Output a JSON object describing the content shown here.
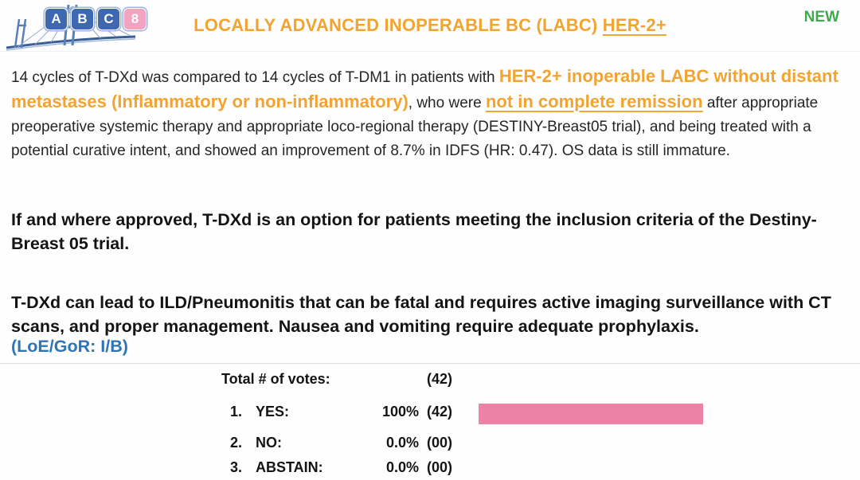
{
  "header": {
    "logo": {
      "letters": [
        "A",
        "B",
        "C"
      ],
      "number": "8"
    },
    "title_main": "LOCALLY ADVANCED INOPERABLE BC (LABC) ",
    "title_underlined": "HER-2+",
    "badge": "NEW"
  },
  "intro": {
    "seg1": "14 cycles of T-DXd was compared to 14 cycles of T-DM1 in patients with ",
    "seg2_highlight": "HER-2+ inoperable LABC without distant metastases (Inflammatory or non-inflammatory)",
    "seg3": ", who were ",
    "seg4_highlight_underlined": "not in complete remission",
    "seg5": " after appropriate preoperative systemic therapy and appropriate loco-regional therapy (DESTINY-Breast05 trial), and being treated with a potential curative intent, and showed an improvement of 8.7% in IDFS (HR: 0.47). OS data is still immature."
  },
  "statement_approval": "If and where approved, T-DXd is an option for patients meeting the inclusion criteria of the Destiny-Breast 05 trial.",
  "statement_safety": "T-DXd can lead to ILD/Pneumonitis that can be fatal and requires active imaging surveillance with CT scans, and proper management. Nausea and vomiting require adequate prophylaxis.",
  "loe_gor": "(LoE/GoR: I/B)",
  "voting": {
    "total_label": "Total # of votes:",
    "total_value": "(42)",
    "rows": [
      {
        "num": "1.",
        "label": "YES:",
        "pct": "100%",
        "count": "(42)",
        "bar_pct": 100
      },
      {
        "num": "2.",
        "label": "NO:",
        "pct": "0.0%",
        "count": "(00)",
        "bar_pct": 0
      },
      {
        "num": "3.",
        "label": "ABSTAIN:",
        "pct": "0.0%",
        "count": "(00)",
        "bar_pct": 0
      }
    ]
  },
  "chart_data": {
    "type": "bar",
    "categories": [
      "YES",
      "NO",
      "ABSTAIN"
    ],
    "values": [
      100,
      0.0,
      0.0
    ],
    "counts": [
      42,
      0,
      0
    ],
    "total_votes": 42,
    "title": "Total # of votes: (42)",
    "xlabel": "",
    "ylabel": "",
    "xlim": [
      0,
      100
    ],
    "orientation": "horizontal",
    "bar_color": "#ED82A6"
  },
  "colors": {
    "accent_orange": "#F0A432",
    "badge_green": "#3DAA4C",
    "loe_blue": "#2E75B6",
    "bar_pink": "#ED82A6",
    "text_dark": "#262626",
    "tile_blue": "#3E68B0",
    "tile_pink": "#F2A3C0"
  }
}
